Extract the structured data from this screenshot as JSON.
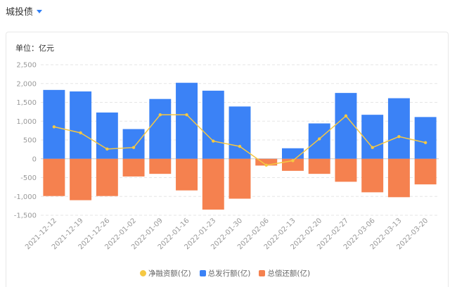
{
  "header": {
    "title": "城投债"
  },
  "chart_data": {
    "type": "bar",
    "unit_label": "单位：亿元",
    "categories": [
      "2021-12-12",
      "2021-12-19",
      "2021-12-26",
      "2022-01-02",
      "2022-01-09",
      "2022-01-16",
      "2022-01-23",
      "2022-01-30",
      "2022-02-06",
      "2022-02-13",
      "2022-02-20",
      "2022-02-27",
      "2022-03-06",
      "2022-03-13",
      "2022-03-20"
    ],
    "ylim": [
      -1500,
      2500
    ],
    "yticks": [
      2500,
      2000,
      1500,
      1000,
      500,
      0,
      -500,
      -1000,
      -1500
    ],
    "ytick_labels": [
      "2,500",
      "2,000",
      "1,500",
      "1,000",
      "500",
      "0",
      "-500",
      "-1,000",
      "-1,500"
    ],
    "grid": true,
    "legend_position": "bottom",
    "series": [
      {
        "name": "净融资额(亿)",
        "kind": "line",
        "color": "#f5c842",
        "values": [
          850,
          690,
          260,
          300,
          1170,
          1170,
          470,
          330,
          -170,
          -50,
          530,
          1140,
          300,
          590,
          430
        ]
      },
      {
        "name": "总发行额(亿)",
        "kind": "bar",
        "color": "#3b82f6",
        "values": [
          1830,
          1790,
          1230,
          790,
          1590,
          2020,
          1810,
          1390,
          -20,
          280,
          940,
          1750,
          1170,
          1610,
          1110
        ]
      },
      {
        "name": "总偿还额(亿)",
        "kind": "bar",
        "color": "#f5814f",
        "values": [
          -990,
          -1100,
          -990,
          -470,
          -400,
          -840,
          -1350,
          -1060,
          -180,
          -320,
          -400,
          -610,
          -890,
          -1020,
          -680
        ]
      }
    ]
  }
}
